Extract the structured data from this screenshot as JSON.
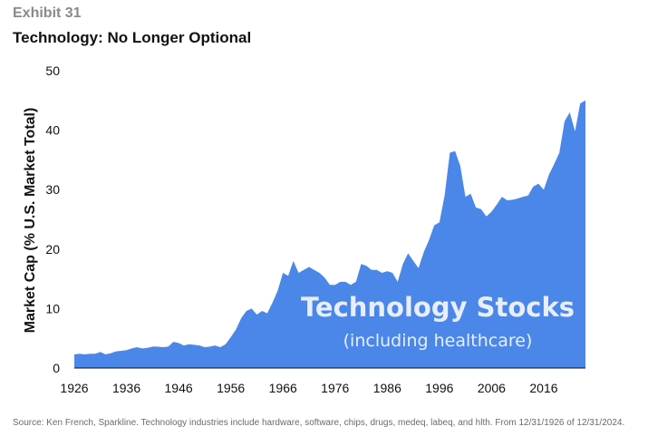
{
  "header": {
    "exhibit": "Exhibit 31",
    "title": "Technology: No Longer Optional"
  },
  "footer": {
    "source": "Source: Ken French, Sparkline. Technology industries include hardware, software, chips, drugs, medeq, labeq, and hlth. From 12/31/1926 of 12/31/2024."
  },
  "colors": {
    "area": "#4a87e8",
    "annotation": "#e8eefb"
  },
  "chart_data": {
    "type": "area",
    "title": "",
    "xlabel": "",
    "ylabel": "Market Cap (% U.S. Market Total)",
    "ylim": [
      0,
      50
    ],
    "xlim": [
      1926,
      2024
    ],
    "yticks": [
      0,
      10,
      20,
      30,
      40,
      50
    ],
    "xticks": [
      1926,
      1936,
      1946,
      1956,
      1966,
      1976,
      1986,
      1996,
      2006,
      2016
    ],
    "grid": false,
    "legend": "none",
    "annotations": [
      "Technology Stocks",
      "(including healthcare)"
    ],
    "series": [
      {
        "x": [
          1926,
          1927,
          1928,
          1929,
          1930,
          1931,
          1932,
          1933,
          1934,
          1935,
          1936,
          1937,
          1938,
          1939,
          1940,
          1941,
          1942,
          1943,
          1944,
          1945,
          1946,
          1947,
          1948,
          1949,
          1950,
          1951,
          1952,
          1953,
          1954,
          1955,
          1956,
          1957,
          1958,
          1959,
          1960,
          1961,
          1962,
          1963,
          1964,
          1965,
          1966,
          1967,
          1968,
          1969,
          1970,
          1971,
          1972,
          1973,
          1974,
          1975,
          1976,
          1977,
          1978,
          1979,
          1980,
          1981,
          1982,
          1983,
          1984,
          1985,
          1986,
          1987,
          1988,
          1989,
          1990,
          1991,
          1992,
          1993,
          1994,
          1995,
          1996,
          1997,
          1998,
          1999,
          2000,
          2001,
          2002,
          2003,
          2004,
          2005,
          2006,
          2007,
          2008,
          2009,
          2010,
          2011,
          2012,
          2013,
          2014,
          2015,
          2016,
          2017,
          2018,
          2019,
          2020,
          2021,
          2022,
          2023,
          2024
        ],
        "values": [
          2.3,
          2.4,
          2.3,
          2.4,
          2.4,
          2.7,
          2.3,
          2.5,
          2.8,
          2.9,
          3.0,
          3.3,
          3.5,
          3.3,
          3.4,
          3.6,
          3.6,
          3.5,
          3.6,
          4.4,
          4.2,
          3.8,
          4.0,
          3.9,
          3.8,
          3.5,
          3.6,
          3.8,
          3.5,
          4.0,
          5.2,
          6.5,
          8.4,
          9.6,
          10.0,
          9.0,
          9.6,
          9.2,
          11.0,
          13.0,
          16.0,
          15.5,
          18.0,
          16.0,
          16.5,
          17.0,
          16.5,
          16.0,
          15.2,
          14.0,
          14.0,
          14.5,
          14.5,
          14.0,
          14.5,
          17.5,
          17.2,
          16.5,
          16.5,
          16.0,
          16.3,
          16.0,
          14.5,
          17.5,
          19.3,
          18.0,
          16.8,
          19.5,
          21.5,
          24.0,
          24.5,
          29.0,
          36.2,
          36.5,
          34.0,
          28.8,
          29.3,
          27.0,
          26.7,
          25.5,
          26.3,
          27.5,
          28.8,
          28.2,
          28.3,
          28.5,
          28.8,
          29.0,
          30.5,
          31.0,
          30.0,
          32.5,
          34.3,
          36.2,
          41.5,
          43.0,
          39.8,
          44.5,
          45.0
        ]
      }
    ]
  }
}
